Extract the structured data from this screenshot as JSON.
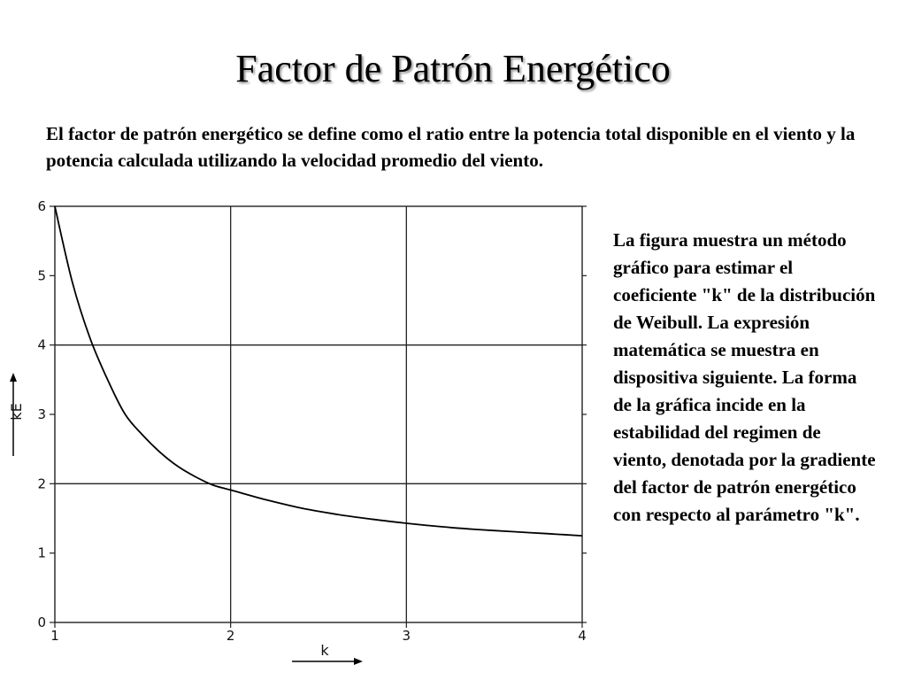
{
  "slide": {
    "title": "Factor de Patrón Energético",
    "intro": "El factor de patrón energético se define como el ratio entre la potencia total disponible en el viento y la potencia calculada utilizando la velocidad promedio del viento.",
    "side_text": "La figura muestra un método gráfico para estimar el coeficiente \"k\" de la distribución de Weibull. La expresión matemática se muestra en dispositiva siguiente. La forma de la gráfica incide en la estabilidad del regimen de viento, denotada por la gradiente del factor de patrón energético con respecto al parámetro \"k\"."
  },
  "chart_data": {
    "type": "line",
    "xlabel": "k",
    "ylabel": "kE",
    "xlim": [
      1,
      4
    ],
    "ylim": [
      0,
      6
    ],
    "x_ticks": [
      "1",
      "2",
      "3",
      "4"
    ],
    "y_ticks": [
      "0",
      "1",
      "2",
      "3",
      "4",
      "5",
      "6"
    ],
    "grid": true,
    "series": [
      {
        "x": [
          1.0,
          1.1,
          1.2,
          1.3,
          1.4,
          1.5,
          1.6,
          1.7,
          1.8,
          1.9,
          2.0,
          2.2,
          2.4,
          2.6,
          2.8,
          3.0,
          3.2,
          3.4,
          3.6,
          3.8,
          4.0
        ],
        "y": [
          6.0,
          4.9,
          4.1,
          3.5,
          3.0,
          2.7,
          2.45,
          2.25,
          2.1,
          1.98,
          1.91,
          1.77,
          1.65,
          1.56,
          1.49,
          1.43,
          1.38,
          1.34,
          1.31,
          1.28,
          1.25
        ]
      }
    ]
  }
}
